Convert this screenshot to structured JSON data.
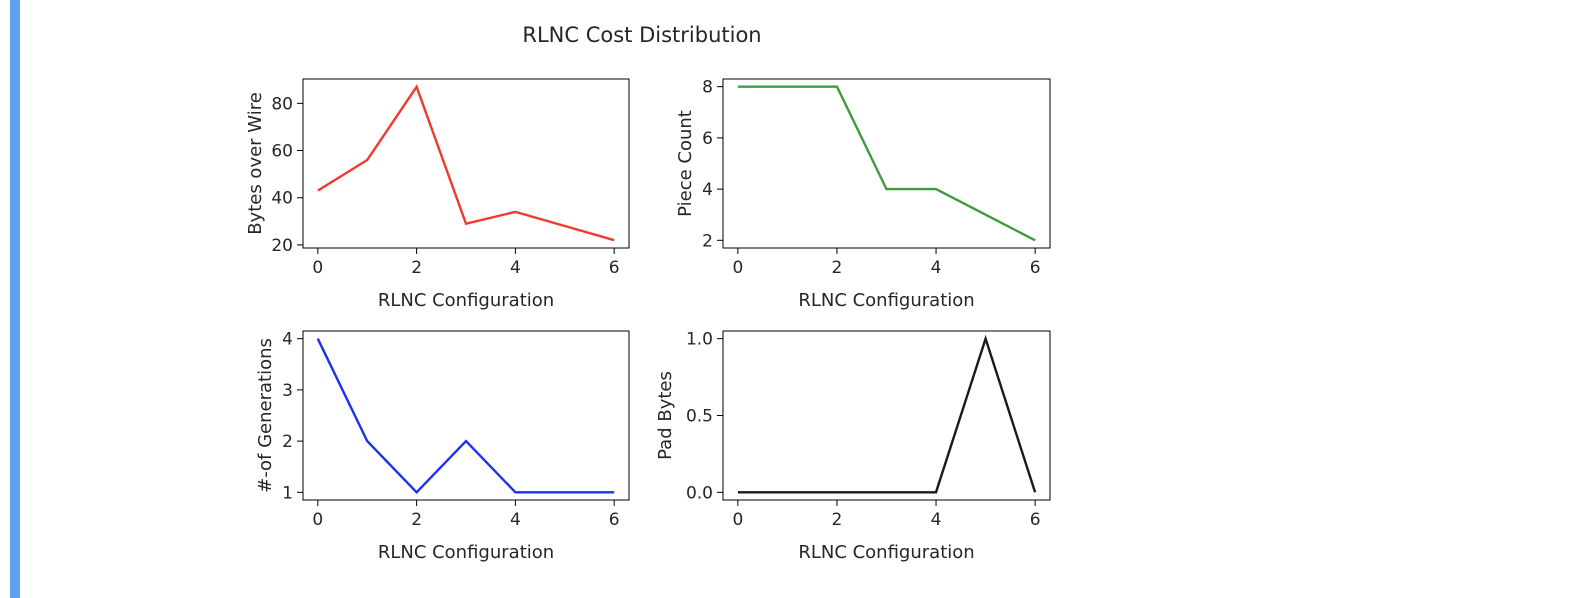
{
  "cell": {
    "bar_color": "#5ea2f0"
  },
  "figure": {
    "title": "RLNC Cost Distribution"
  },
  "chart_data": [
    {
      "type": "line",
      "xlabel": "RLNC Configuration",
      "ylabel": "Bytes over Wire",
      "x": [
        0,
        1,
        2,
        3,
        4,
        5,
        6
      ],
      "series": [
        {
          "values": [
            43,
            56,
            87,
            29,
            34,
            28,
            22
          ],
          "color": "#f03a2e"
        }
      ],
      "xlim": [
        -0.3,
        6.3
      ],
      "ylim": [
        18.7,
        90.3
      ],
      "xticks": [
        0,
        2,
        4,
        6
      ],
      "yticks": [
        20,
        40,
        60,
        80
      ],
      "grid": false
    },
    {
      "type": "line",
      "xlabel": "RLNC Configuration",
      "ylabel": "Piece Count",
      "x": [
        0,
        1,
        2,
        3,
        4,
        5,
        6
      ],
      "series": [
        {
          "values": [
            8,
            8,
            8,
            4,
            4,
            3,
            2
          ],
          "color": "#3e9b3e"
        }
      ],
      "xlim": [
        -0.3,
        6.3
      ],
      "ylim": [
        1.7,
        8.3
      ],
      "xticks": [
        0,
        2,
        4,
        6
      ],
      "yticks": [
        2,
        4,
        6,
        8
      ],
      "grid": false
    },
    {
      "type": "line",
      "xlabel": "RLNC Configuration",
      "ylabel": "#-of Generations",
      "x": [
        0,
        1,
        2,
        3,
        4,
        5,
        6
      ],
      "series": [
        {
          "values": [
            4,
            2,
            1,
            2,
            1,
            1,
            1
          ],
          "color": "#1f2ef5"
        }
      ],
      "xlim": [
        -0.3,
        6.3
      ],
      "ylim": [
        0.85,
        4.15
      ],
      "xticks": [
        0,
        2,
        4,
        6
      ],
      "yticks": [
        1,
        2,
        3,
        4
      ],
      "grid": false
    },
    {
      "type": "line",
      "xlabel": "RLNC Configuration",
      "ylabel": "Pad Bytes",
      "x": [
        0,
        1,
        2,
        3,
        4,
        5,
        6
      ],
      "series": [
        {
          "values": [
            0,
            0,
            0,
            0,
            0,
            1,
            0
          ],
          "color": "#1a1a1a"
        }
      ],
      "xlim": [
        -0.3,
        6.3
      ],
      "ylim": [
        -0.05,
        1.05
      ],
      "xticks": [
        0,
        2,
        4,
        6
      ],
      "yticks": [
        0.0,
        0.5,
        1.0
      ],
      "ytick_labels": [
        "0.0",
        "0.5",
        "1.0"
      ],
      "grid": false
    }
  ]
}
